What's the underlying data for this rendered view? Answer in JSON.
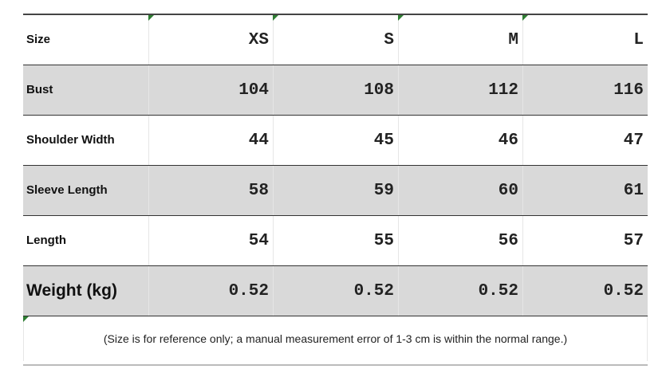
{
  "table": {
    "header": [
      "Size",
      "XS",
      "S",
      "M",
      "L"
    ],
    "rows": [
      [
        "Bust",
        104,
        108,
        112,
        116
      ],
      [
        "Shoulder Width",
        44,
        45,
        46,
        47
      ],
      [
        "Sleeve Length",
        58,
        59,
        60,
        61
      ],
      [
        "Length",
        54,
        55,
        56,
        57
      ],
      [
        "Weight (kg)",
        0.52,
        0.52,
        0.52,
        0.52
      ]
    ],
    "note": "(Size is for reference only; a manual measurement error of 1-3 cm is within the normal range.)"
  }
}
